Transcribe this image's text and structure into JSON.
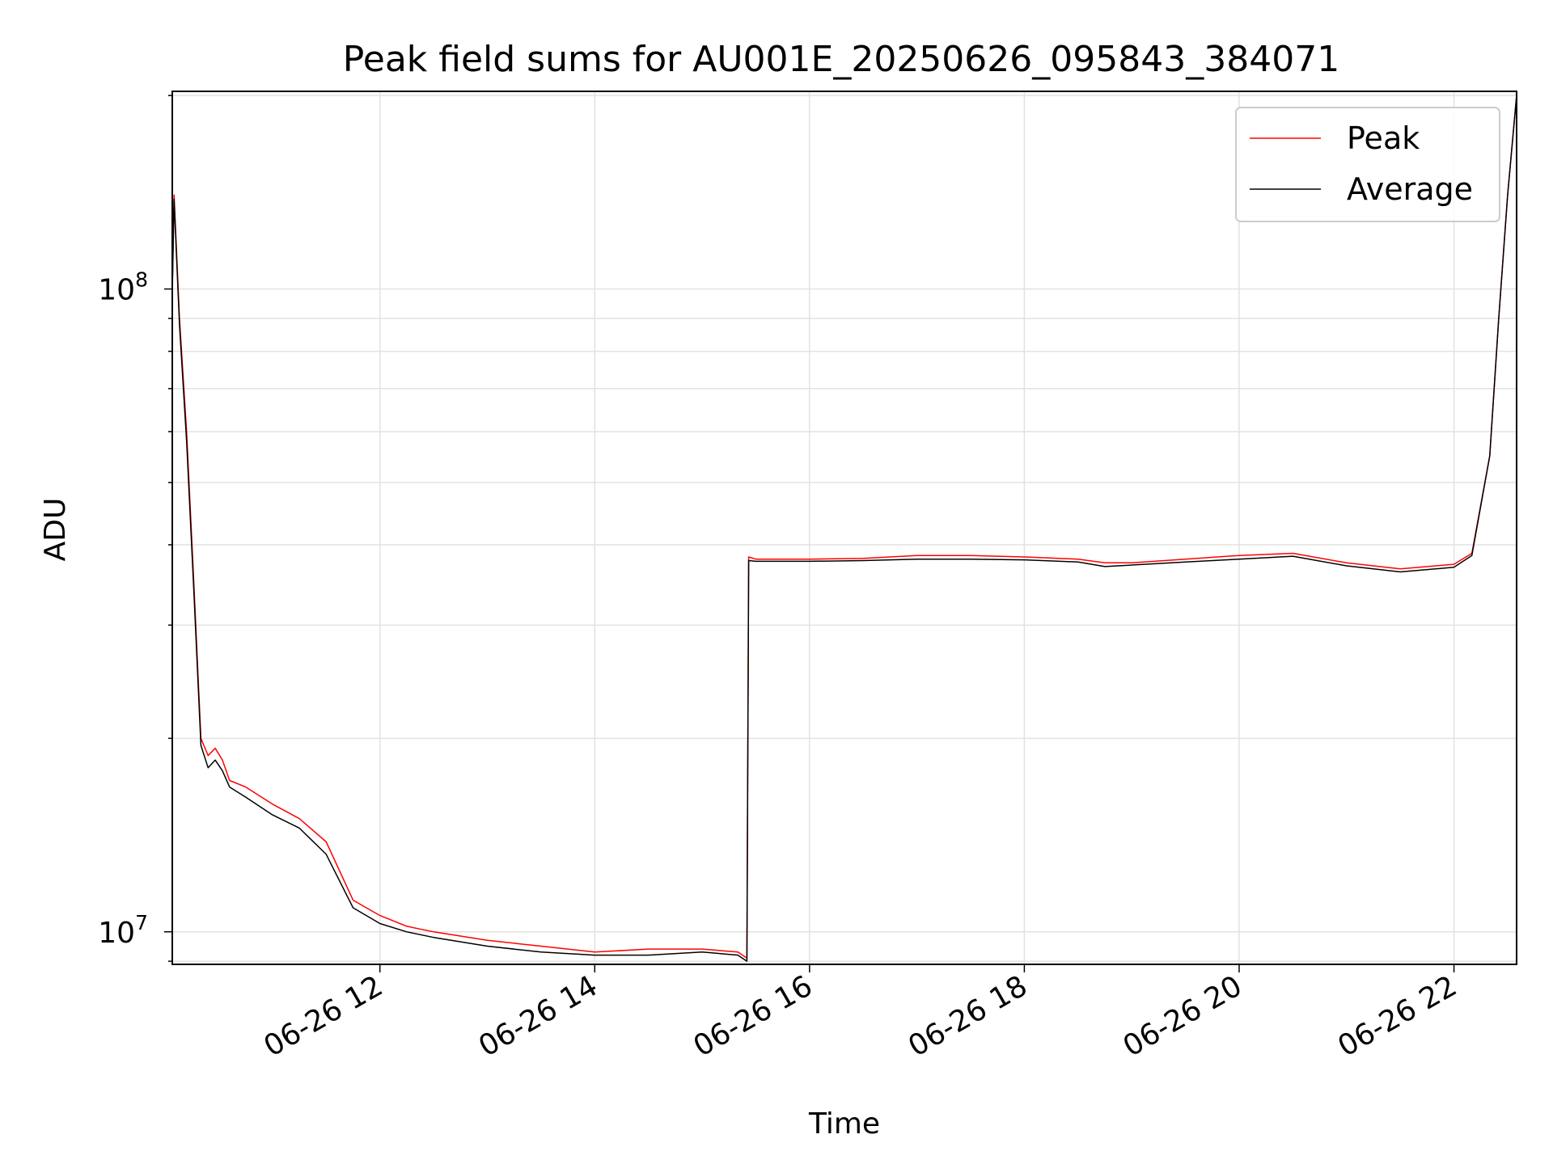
{
  "chart_data": {
    "type": "line",
    "title": "Peak field sums for AU001E_20250626_095843_384071",
    "xlabel": "Time",
    "ylabel": "ADU",
    "yscale": "log",
    "xlim": [
      "2025-06-26 10:04",
      "2025-06-26 22:35"
    ],
    "ylim": [
      8900000,
      203000000
    ],
    "grid": true,
    "legend_position": "top-right",
    "x_ticks": [
      "06-26 12",
      "06-26 14",
      "06-26 16",
      "06-26 18",
      "06-26 20",
      "06-26 22"
    ],
    "y_ticks": [
      {
        "value": 10000000,
        "base": "10",
        "exp": "7"
      },
      {
        "value": 100000000,
        "base": "10",
        "exp": "8"
      }
    ],
    "x_times": [
      "2025-06-26 10:04",
      "2025-06-26 10:05",
      "2025-06-26 10:08",
      "2025-06-26 10:12",
      "2025-06-26 10:16",
      "2025-06-26 10:20",
      "2025-06-26 10:24",
      "2025-06-26 10:28",
      "2025-06-26 10:32",
      "2025-06-26 10:36",
      "2025-06-26 10:45",
      "2025-06-26 11:00",
      "2025-06-26 11:15",
      "2025-06-26 11:30",
      "2025-06-26 11:45",
      "2025-06-26 12:00",
      "2025-06-26 12:15",
      "2025-06-26 12:30",
      "2025-06-26 13:00",
      "2025-06-26 13:30",
      "2025-06-26 14:00",
      "2025-06-26 14:30",
      "2025-06-26 15:00",
      "2025-06-26 15:20",
      "2025-06-26 15:25",
      "2025-06-26 15:26",
      "2025-06-26 15:30",
      "2025-06-26 16:00",
      "2025-06-26 16:30",
      "2025-06-26 17:00",
      "2025-06-26 17:30",
      "2025-06-26 18:00",
      "2025-06-26 18:30",
      "2025-06-26 18:45",
      "2025-06-26 19:00",
      "2025-06-26 19:30",
      "2025-06-26 20:00",
      "2025-06-26 20:30",
      "2025-06-26 21:00",
      "2025-06-26 21:30",
      "2025-06-26 22:00",
      "2025-06-26 22:10",
      "2025-06-26 22:20",
      "2025-06-26 22:25",
      "2025-06-26 22:30",
      "2025-06-26 22:35"
    ],
    "series": [
      {
        "name": "Peak",
        "color": "#ff0000",
        "values": [
          100000000,
          140000000,
          90000000,
          60000000,
          35000000,
          20000000,
          18800000,
          19300000,
          18500000,
          17200000,
          16800000,
          15800000,
          15000000,
          13800000,
          11200000,
          10600000,
          10200000,
          10000000,
          9700000,
          9500000,
          9300000,
          9400000,
          9400000,
          9300000,
          9100000,
          38300000,
          38000000,
          38000000,
          38100000,
          38500000,
          38500000,
          38300000,
          38000000,
          37500000,
          37500000,
          38000000,
          38500000,
          38800000,
          37500000,
          36700000,
          37300000,
          38800000,
          55000000,
          90000000,
          140000000,
          200000000
        ]
      },
      {
        "name": "Average",
        "color": "#000000",
        "values": [
          98000000,
          138000000,
          88000000,
          58000000,
          34000000,
          19500000,
          18000000,
          18500000,
          17800000,
          16800000,
          16200000,
          15200000,
          14500000,
          13200000,
          10900000,
          10300000,
          10000000,
          9800000,
          9500000,
          9300000,
          9200000,
          9200000,
          9300000,
          9200000,
          9000000,
          37800000,
          37700000,
          37700000,
          37800000,
          38000000,
          38000000,
          37900000,
          37600000,
          37000000,
          37200000,
          37600000,
          38000000,
          38400000,
          37100000,
          36300000,
          36900000,
          38500000,
          55000000,
          90000000,
          140000000,
          200000000
        ]
      }
    ]
  }
}
